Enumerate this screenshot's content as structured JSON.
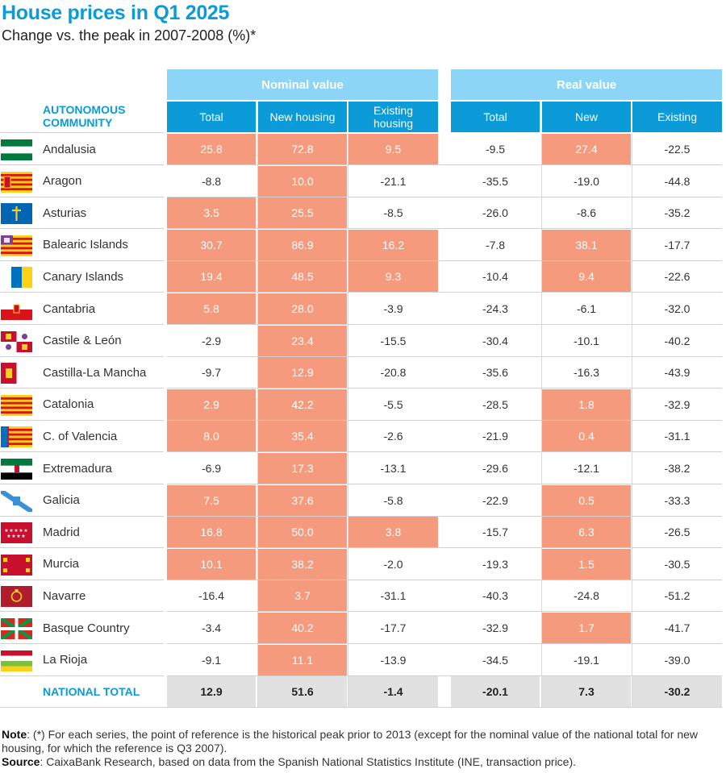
{
  "title": "House prices in Q1 2025",
  "subtitle": "Change vs. the peak in 2007-2008 (%)*",
  "header": {
    "community": "AUTONOMOUS\nCOMMUNITY",
    "nominal_group": "Nominal value",
    "real_group": "Real value",
    "columns": [
      "Total",
      "New housing",
      "Existing\nhousing",
      "Total",
      "New",
      "Existing"
    ]
  },
  "colors": {
    "accent": "#0a9bd8",
    "header_light": "#8dd5f7",
    "highlight": "#f59a7c",
    "total_bg": "#e1e1e1"
  },
  "chart_data": {
    "type": "table",
    "title": "House prices in Q1 2025",
    "subtitle": "Change vs. the peak in 2007-2008 (%)*",
    "columns": [
      "Nominal value - Total",
      "Nominal value - New housing",
      "Nominal value - Existing housing",
      "Real value - Total",
      "Real value - New",
      "Real value - Existing"
    ],
    "rows": [
      {
        "name": "Andalusia",
        "flag": "andalusia-flag",
        "values": [
          "25.8",
          "72.8",
          "9.5",
          "-9.5",
          "27.4",
          "-22.5"
        ]
      },
      {
        "name": "Aragon",
        "flag": "aragon-flag",
        "values": [
          "-8.8",
          "10.0",
          "-21.1",
          "-35.5",
          "-19.0",
          "-44.8"
        ]
      },
      {
        "name": "Asturias",
        "flag": "asturias-flag",
        "values": [
          "3.5",
          "25.5",
          "-8.5",
          "-26.0",
          "-8.6",
          "-35.2"
        ]
      },
      {
        "name": "Balearic Islands",
        "flag": "balearic-flag",
        "values": [
          "30.7",
          "86.9",
          "16.2",
          "-7.8",
          "38.1",
          "-17.7"
        ]
      },
      {
        "name": "Canary Islands",
        "flag": "canary-flag",
        "values": [
          "19.4",
          "48.5",
          "9.3",
          "-10.4",
          "9.4",
          "-22.6"
        ]
      },
      {
        "name": "Cantabria",
        "flag": "cantabria-flag",
        "values": [
          "5.8",
          "28.0",
          "-3.9",
          "-24.3",
          "-6.1",
          "-32.0"
        ]
      },
      {
        "name": "Castile & León",
        "flag": "castile-leon-flag",
        "values": [
          "-2.9",
          "23.4",
          "-15.5",
          "-30.4",
          "-10.1",
          "-40.2"
        ]
      },
      {
        "name": "Castilla-La Mancha",
        "flag": "castilla-la-mancha-flag",
        "values": [
          "-9.7",
          "12.9",
          "-20.8",
          "-35.6",
          "-16.3",
          "-43.9"
        ]
      },
      {
        "name": "Catalonia",
        "flag": "catalonia-flag",
        "values": [
          "2.9",
          "42.2",
          "-5.5",
          "-28.5",
          "1.8",
          "-32.9"
        ]
      },
      {
        "name": "C. of Valencia",
        "flag": "valencia-flag",
        "values": [
          "8.0",
          "35.4",
          "-2.6",
          "-21.9",
          "0.4",
          "-31.1"
        ]
      },
      {
        "name": "Extremadura",
        "flag": "extremadura-flag",
        "values": [
          "-6.9",
          "17.3",
          "-13.1",
          "-29.6",
          "-12.1",
          "-38.2"
        ]
      },
      {
        "name": "Galicia",
        "flag": "galicia-flag",
        "values": [
          "7.5",
          "37.6",
          "-5.8",
          "-22.9",
          "0.5",
          "-33.3"
        ]
      },
      {
        "name": "Madrid",
        "flag": "madrid-flag",
        "values": [
          "16.8",
          "50.0",
          "3.8",
          "-15.7",
          "6.3",
          "-26.5"
        ]
      },
      {
        "name": "Murcia",
        "flag": "murcia-flag",
        "values": [
          "10.1",
          "38.2",
          "-2.0",
          "-19.3",
          "1.5",
          "-30.5"
        ]
      },
      {
        "name": "Navarre",
        "flag": "navarre-flag",
        "values": [
          "-16.4",
          "3.7",
          "-31.1",
          "-40.3",
          "-24.8",
          "-51.2"
        ]
      },
      {
        "name": "Basque Country",
        "flag": "basque-flag",
        "values": [
          "-3.4",
          "40.2",
          "-17.7",
          "-32.9",
          "1.7",
          "-41.7"
        ]
      },
      {
        "name": "La Rioja",
        "flag": "la-rioja-flag",
        "values": [
          "-9.1",
          "11.1",
          "-13.9",
          "-34.5",
          "-19.1",
          "-39.0"
        ]
      }
    ],
    "total": {
      "name": "NATIONAL TOTAL",
      "values": [
        "12.9",
        "51.6",
        "-1.4",
        "-20.1",
        "7.3",
        "-30.2"
      ]
    },
    "highlight_rule": "values above zero are shaded"
  },
  "notes": {
    "note_label": "Note",
    "note_text": ": (*) For each series, the point of reference is the historical peak prior to 2013 (except for the nominal value of the national total for new housing, for which the reference is Q3 2007).",
    "source_label": "Source",
    "source_text": ": CaixaBank Research, based on data from the Spanish National Statistics Institute (INE, transaction price)."
  }
}
